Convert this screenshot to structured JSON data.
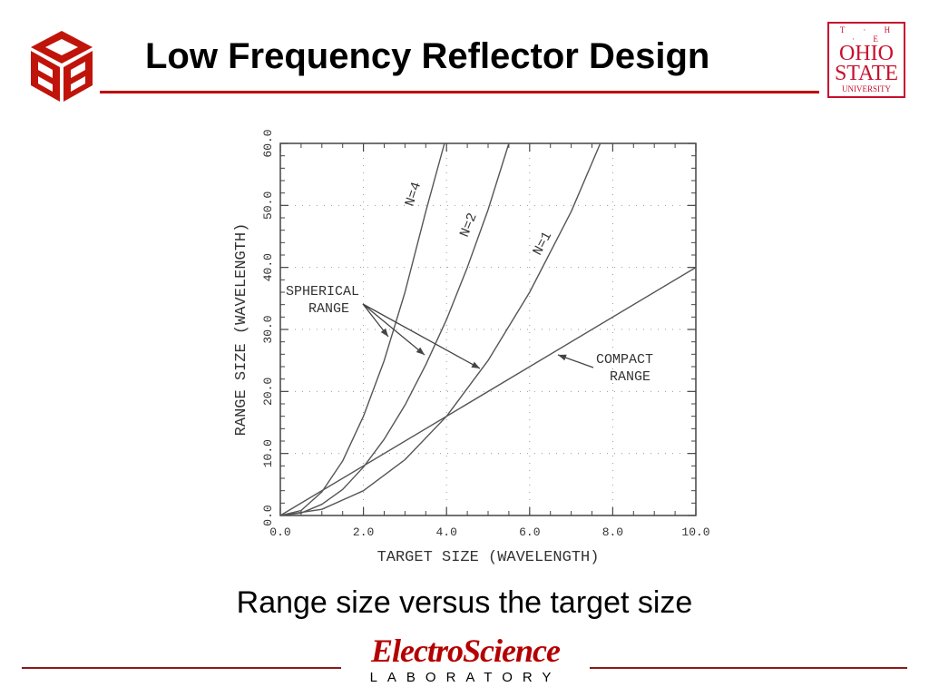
{
  "slide": {
    "title": "Low Frequency Reflector Design",
    "caption": "Range size versus the target size",
    "logo_esl": {
      "name": "ElectroScience",
      "sub": "LABORATORY"
    },
    "logo_osu": {
      "the": "T · H · E",
      "line1": "OHIO",
      "line2": "STATE",
      "line3": "UNIVERSITY"
    },
    "colors": {
      "title_rule": "#c00000",
      "cee_logo": "#c0140a",
      "osu": "#c8102e"
    }
  },
  "chart_data": {
    "type": "line",
    "xlabel": "TARGET SIZE (WAVELENGTH)",
    "ylabel": "RANGE SIZE (WAVELENGTH)",
    "xlim": [
      0,
      10
    ],
    "ylim": [
      0,
      60
    ],
    "xticks": [
      "0.0",
      "2.0",
      "4.0",
      "6.0",
      "8.0",
      "10.0"
    ],
    "yticks": [
      "0.0",
      "10.0",
      "20.0",
      "30.0",
      "40.0",
      "50.0",
      "60.0"
    ],
    "grid": "dotted",
    "series": [
      {
        "name": "N=4",
        "x": [
          0,
          0.5,
          1.0,
          1.5,
          2.0,
          2.5,
          3.0,
          3.5,
          3.95
        ],
        "y": [
          0,
          0.8,
          3.8,
          8.8,
          16,
          25,
          36,
          49,
          60
        ]
      },
      {
        "name": "N=2",
        "x": [
          0,
          0.5,
          1.0,
          1.5,
          2.0,
          2.5,
          3.0,
          3.5,
          4.0,
          4.5,
          5.0,
          5.5
        ],
        "y": [
          0,
          0.4,
          1.8,
          4.2,
          7.8,
          12.3,
          17.8,
          24.3,
          31.6,
          40,
          49.3,
          60
        ]
      },
      {
        "name": "N=1",
        "x": [
          0,
          1.0,
          2.0,
          3.0,
          4.0,
          5.0,
          6.0,
          7.0,
          7.7
        ],
        "y": [
          0,
          1.0,
          4.0,
          9.0,
          16,
          25,
          36,
          49,
          60
        ]
      },
      {
        "name": "COMPACT RANGE",
        "x": [
          0,
          10
        ],
        "y": [
          0,
          40
        ]
      }
    ],
    "annotations": [
      {
        "text": "SPHERICAL",
        "line2": "RANGE",
        "points_to": [
          "N=4",
          "N=2",
          "N=1"
        ]
      },
      {
        "text": "COMPACT",
        "line2": "RANGE",
        "points_to": [
          "COMPACT RANGE"
        ]
      }
    ]
  }
}
